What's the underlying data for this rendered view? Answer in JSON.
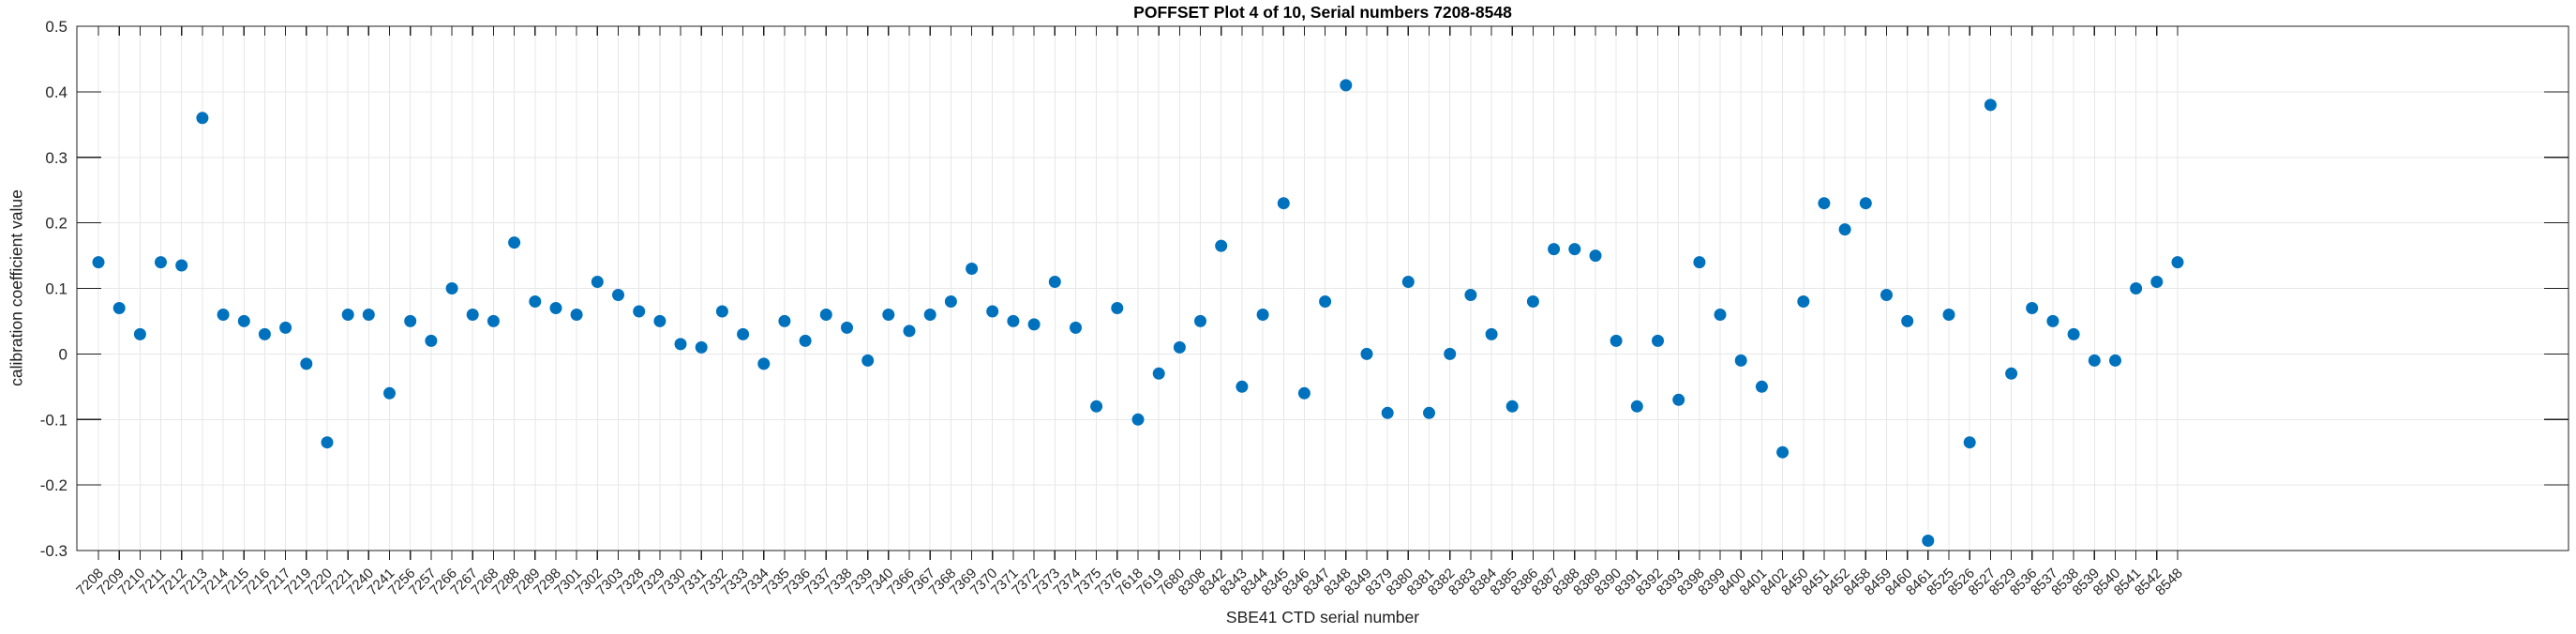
{
  "title": "POFFSET Plot 4 of 10, Serial numbers 7208-8548",
  "xlabel": "SBE41 CTD serial number",
  "ylabel": "calibration coefficient value",
  "colors": {
    "marker": "#0072BD",
    "grid": "#e7e7e7",
    "axis": "#1f1f1f",
    "tick_label": "#262626",
    "background": "#ffffff"
  },
  "chart_data": {
    "type": "scatter",
    "title": "POFFSET Plot 4 of 10, Serial numbers 7208-8548",
    "xlabel": "SBE41 CTD serial number",
    "ylabel": "calibration coefficient value",
    "ylim": [
      -0.3,
      0.5
    ],
    "grid": true,
    "legend": "none",
    "x_tick_rotation": 45,
    "ytick_labels": [
      "0.5",
      "0.4",
      "0.3",
      "0.2",
      "0.1",
      "0",
      "-0.1",
      "-0.2",
      "-0.3"
    ],
    "ytick_values": [
      0.5,
      0.4,
      0.3,
      0.2,
      0.1,
      0,
      -0.1,
      -0.2,
      -0.3
    ],
    "categories": [
      "7208",
      "7209",
      "7210",
      "7211",
      "7212",
      "7213",
      "7214",
      "7215",
      "7216",
      "7217",
      "7219",
      "7220",
      "7221",
      "7240",
      "7241",
      "7256",
      "7257",
      "7266",
      "7267",
      "7268",
      "7288",
      "7289",
      "7298",
      "7301",
      "7302",
      "7303",
      "7328",
      "7329",
      "7330",
      "7331",
      "7332",
      "7333",
      "7334",
      "7335",
      "7336",
      "7337",
      "7338",
      "7339",
      "7340",
      "7366",
      "7367",
      "7368",
      "7369",
      "7370",
      "7371",
      "7372",
      "7373",
      "7374",
      "7375",
      "7376",
      "7618",
      "7619",
      "7680",
      "8308",
      "8342",
      "8343",
      "8344",
      "8345",
      "8346",
      "8347",
      "8348",
      "8349",
      "8379",
      "8380",
      "8381",
      "8382",
      "8383",
      "8384",
      "8385",
      "8386",
      "8387",
      "8388",
      "8389",
      "8390",
      "8391",
      "8392",
      "8393",
      "8398",
      "8399",
      "8400",
      "8401",
      "8402",
      "8450",
      "8451",
      "8452",
      "8458",
      "8459",
      "8460",
      "8461",
      "8525",
      "8526",
      "8527",
      "8529",
      "8536",
      "8537",
      "8538",
      "8539",
      "8540",
      "8541",
      "8542",
      "8548"
    ],
    "values": [
      0.14,
      0.07,
      0.03,
      0.14,
      0.135,
      0.36,
      0.06,
      0.05,
      0.03,
      0.04,
      -0.015,
      -0.135,
      0.06,
      0.06,
      -0.06,
      0.05,
      0.02,
      0.1,
      0.06,
      0.05,
      0.17,
      0.08,
      0.07,
      0.06,
      0.11,
      0.09,
      0.065,
      0.05,
      0.015,
      0.01,
      0.065,
      0.03,
      -0.015,
      0.05,
      0.02,
      0.06,
      0.04,
      -0.01,
      0.06,
      0.035,
      0.06,
      0.08,
      0.13,
      0.065,
      0.05,
      0.045,
      0.11,
      0.04,
      -0.08,
      0.07,
      -0.1,
      -0.03,
      0.01,
      0.05,
      0.165,
      -0.05,
      0.06,
      0.23,
      -0.06,
      0.08,
      0.41,
      0.0,
      -0.09,
      0.11,
      -0.09,
      0.0,
      0.09,
      0.03,
      -0.08,
      0.08,
      0.16,
      0.16,
      0.15,
      0.02,
      -0.08,
      0.02,
      -0.07,
      0.14,
      0.06,
      -0.01,
      -0.05,
      -0.15,
      0.08,
      0.23,
      0.19,
      0.23,
      0.09,
      0.05,
      -0.285,
      0.06,
      -0.135,
      0.38,
      -0.03,
      0.07,
      0.05,
      0.03,
      -0.01,
      -0.01,
      0.1,
      0.11,
      0.14
    ]
  }
}
